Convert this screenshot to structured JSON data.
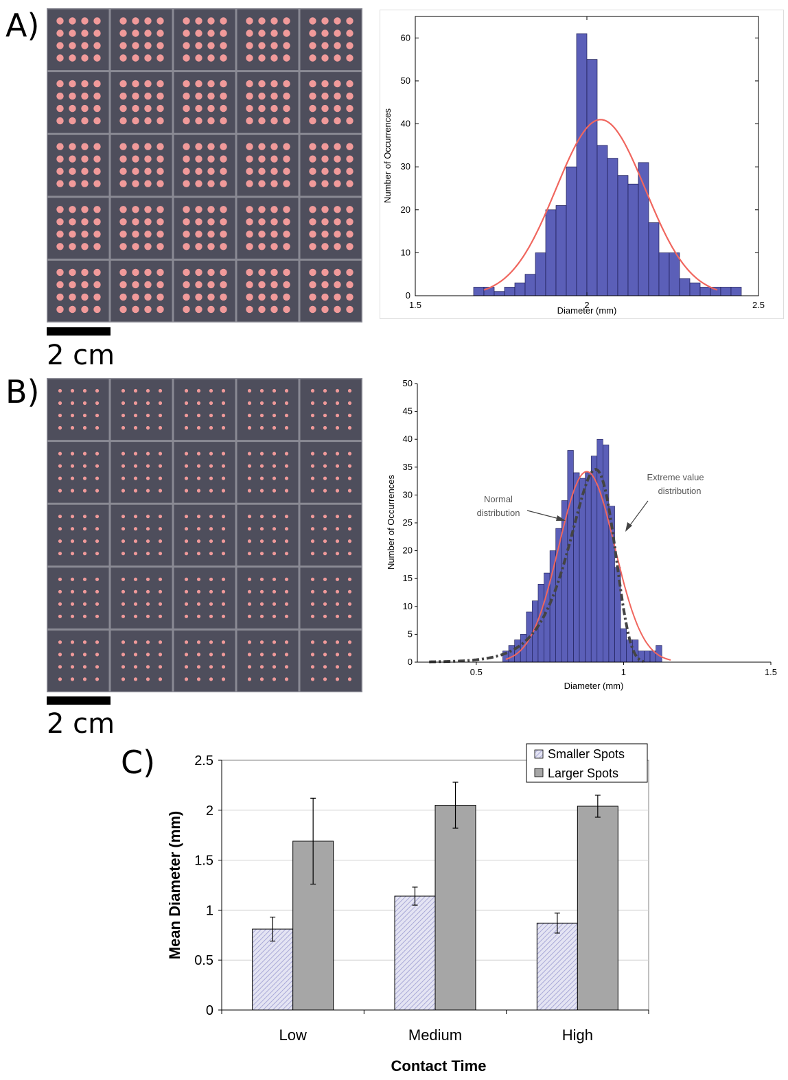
{
  "panels": {
    "a": {
      "letter": "A)",
      "scale_label": "2 cm"
    },
    "b": {
      "letter": "B)",
      "scale_label": "2 cm"
    },
    "c": {
      "letter": "C)"
    }
  },
  "colors": {
    "bar_fill": "#5b5fb8",
    "normal_curve": "#f0665e",
    "extreme_curve": "#444444",
    "large_spots": "#a6a6a6",
    "small_spots": "#d7d7ee",
    "array_bg": "#4e4e5c",
    "spot": "#f19a9a"
  },
  "chart_data": [
    {
      "type": "bar",
      "panel": "A",
      "xlabel": "Diameter (mm)",
      "ylabel": "Number of Occurrences",
      "xlim": [
        1.5,
        2.5
      ],
      "ylim": [
        0,
        65
      ],
      "xticks": [
        1.5,
        2,
        2.5
      ],
      "yticks": [
        0,
        10,
        20,
        30,
        40,
        50,
        60
      ],
      "bin_width": 0.03,
      "bin_starts": [
        1.67,
        1.7,
        1.73,
        1.76,
        1.79,
        1.82,
        1.85,
        1.88,
        1.91,
        1.94,
        1.97,
        2.0,
        2.03,
        2.06,
        2.09,
        2.12,
        2.15,
        2.18,
        2.21,
        2.24,
        2.27,
        2.3,
        2.33,
        2.36,
        2.39,
        2.42
      ],
      "values": [
        2,
        2,
        1,
        2,
        3,
        5,
        10,
        20,
        21,
        30,
        61,
        55,
        35,
        32,
        28,
        26,
        31,
        17,
        10,
        10,
        4,
        3,
        2,
        2,
        2,
        2
      ],
      "fit_normal": {
        "mean": 2.04,
        "peak": 41,
        "sd": 0.13,
        "x_range": [
          1.7,
          2.38
        ]
      }
    },
    {
      "type": "bar",
      "panel": "B",
      "xlabel": "Diameter (mm)",
      "ylabel": "Number of Occurrences",
      "xlim": [
        0.3,
        1.5
      ],
      "ylim": [
        0,
        50
      ],
      "xticks": [
        0.5,
        1,
        1.5
      ],
      "yticks": [
        0,
        5,
        10,
        15,
        20,
        25,
        30,
        35,
        40,
        45,
        50
      ],
      "bin_width": 0.02,
      "bin_starts": [
        0.59,
        0.61,
        0.63,
        0.65,
        0.67,
        0.69,
        0.71,
        0.73,
        0.75,
        0.77,
        0.79,
        0.81,
        0.83,
        0.85,
        0.87,
        0.89,
        0.91,
        0.93,
        0.95,
        0.97,
        0.99,
        1.01,
        1.03,
        1.05,
        1.07,
        1.09,
        1.11
      ],
      "values": [
        2,
        3,
        4,
        5,
        9,
        11,
        14,
        16,
        20,
        24,
        29,
        38,
        34,
        33,
        34,
        37,
        40,
        39,
        28,
        17,
        6,
        4,
        4,
        2,
        2,
        2,
        3
      ],
      "fit_normal": {
        "mean": 0.875,
        "peak": 34.2,
        "sd": 0.095,
        "x_range": [
          0.6,
          1.16
        ]
      },
      "fit_extreme": {
        "mode": 0.905,
        "peak": 34.6,
        "scale": 0.075,
        "x_range": [
          0.34,
          1.07
        ]
      },
      "annotations": [
        {
          "line1": "Normal",
          "line2": "distribution"
        },
        {
          "line1": "Extreme value",
          "line2": "distribution"
        }
      ]
    },
    {
      "type": "bar",
      "panel": "C",
      "xlabel": "Contact Time",
      "ylabel": "Mean Diameter (mm)",
      "ylim": [
        0,
        2.5
      ],
      "yticks": [
        0,
        0.5,
        1,
        1.5,
        2,
        2.5
      ],
      "ytick_labels": [
        "0",
        "0.5",
        "1",
        "1.5",
        "2",
        "2.5"
      ],
      "categories": [
        "Low",
        "Medium",
        "High"
      ],
      "series": [
        {
          "name": "Smaller Spots",
          "values": [
            0.81,
            1.14,
            0.87
          ],
          "errors": [
            0.12,
            0.09,
            0.1
          ]
        },
        {
          "name": "Larger Spots",
          "values": [
            1.69,
            2.05,
            2.04
          ],
          "errors": [
            0.43,
            0.23,
            0.11
          ]
        }
      ],
      "grid": true,
      "legend": "top-right"
    }
  ]
}
